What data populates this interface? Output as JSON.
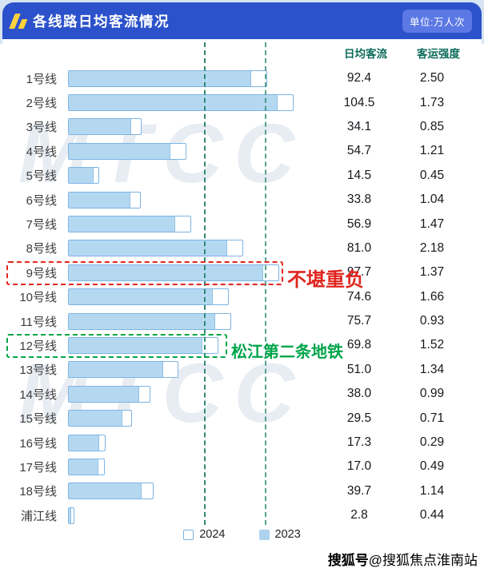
{
  "header": {
    "title": "各线路日均客流情况",
    "unit_label": "单位:万人次"
  },
  "columns": {
    "flow": "日均客流",
    "intensity": "客运强度"
  },
  "rows": [
    {
      "label": "1号线",
      "flow": "92.4",
      "intensity": "2.50"
    },
    {
      "label": "2号线",
      "flow": "104.5",
      "intensity": "1.73"
    },
    {
      "label": "3号线",
      "flow": "34.1",
      "intensity": "0.85"
    },
    {
      "label": "4号线",
      "flow": "54.7",
      "intensity": "1.21"
    },
    {
      "label": "5号线",
      "flow": "14.5",
      "intensity": "0.45"
    },
    {
      "label": "6号线",
      "flow": "33.8",
      "intensity": "1.04"
    },
    {
      "label": "7号线",
      "flow": "56.9",
      "intensity": "1.47"
    },
    {
      "label": "8号线",
      "flow": "81.0",
      "intensity": "2.18"
    },
    {
      "label": "9号线",
      "flow": "97.7",
      "intensity": "1.37"
    },
    {
      "label": "10号线",
      "flow": "74.6",
      "intensity": "1.66"
    },
    {
      "label": "11号线",
      "flow": "75.7",
      "intensity": "0.93"
    },
    {
      "label": "12号线",
      "flow": "69.8",
      "intensity": "1.52"
    },
    {
      "label": "13号线",
      "flow": "51.0",
      "intensity": "1.34"
    },
    {
      "label": "14号线",
      "flow": "38.0",
      "intensity": "0.99"
    },
    {
      "label": "15号线",
      "flow": "29.5",
      "intensity": "0.71"
    },
    {
      "label": "16号线",
      "flow": "17.3",
      "intensity": "0.29"
    },
    {
      "label": "17号线",
      "flow": "17.0",
      "intensity": "0.49"
    },
    {
      "label": "18号线",
      "flow": "39.7",
      "intensity": "1.14"
    },
    {
      "label": "浦江线",
      "flow": "2.8",
      "intensity": "0.44"
    }
  ],
  "chart_data": {
    "type": "bar",
    "orientation": "horizontal",
    "title": "各线路日均客流情况",
    "unit": "万人次",
    "categories": [
      "1号线",
      "2号线",
      "3号线",
      "4号线",
      "5号线",
      "6号线",
      "7号线",
      "8号线",
      "9号线",
      "10号线",
      "11号线",
      "12号线",
      "13号线",
      "14号线",
      "15号线",
      "16号线",
      "17号线",
      "18号线",
      "浦江线"
    ],
    "series": [
      {
        "name": "2024",
        "values": [
          92.4,
          104.5,
          34.1,
          54.7,
          14.5,
          33.8,
          56.9,
          81.0,
          97.7,
          74.6,
          75.7,
          69.8,
          51.0,
          38.0,
          29.5,
          17.3,
          17.0,
          39.7,
          2.8
        ]
      }
    ],
    "secondary_metric": {
      "name": "客运强度",
      "values": [
        2.5,
        1.73,
        0.85,
        1.21,
        0.45,
        1.04,
        1.47,
        2.18,
        1.37,
        1.66,
        0.93,
        1.52,
        1.34,
        0.99,
        0.71,
        0.29,
        0.49,
        1.14,
        0.44
      ]
    },
    "legend": [
      "2024",
      "2023"
    ],
    "legend_position": "bottom",
    "note": "2023 series shown as filled inner portion of each bar, values not labeled"
  },
  "annotations": {
    "overloaded": "不堪重负",
    "songjiang": "松江第二条地铁"
  },
  "colors": {
    "header_bg": "#2c52cb",
    "bar_fill_2023": "#b5d8f1",
    "bar_border_2024": "#7db4e3",
    "annotation_red": "#e0251f",
    "annotation_green": "#00a44a",
    "column_header_text": "#0c6b5b",
    "guide_line": "#2f8b74"
  },
  "watermark": "MTCC",
  "footer": {
    "brand": "搜狐号",
    "account": "@搜狐焦点淮南站"
  }
}
